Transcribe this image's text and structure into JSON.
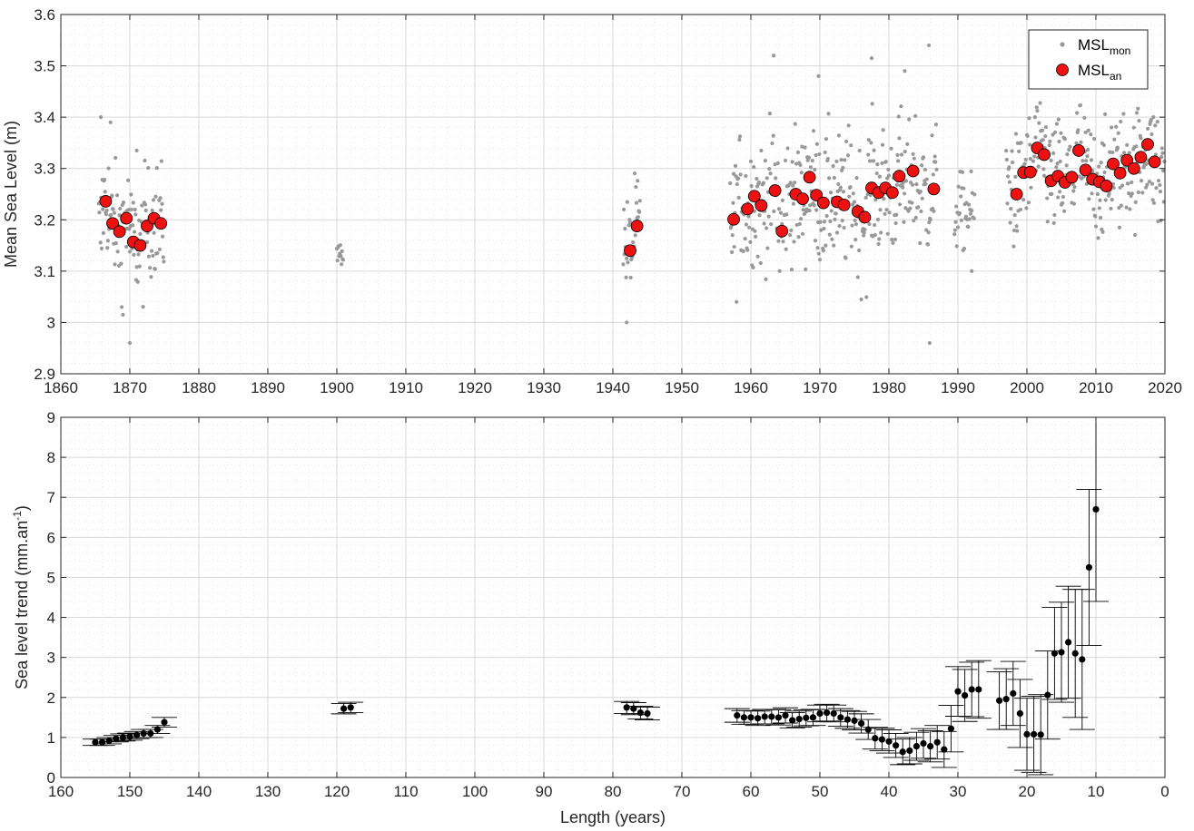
{
  "figure": {
    "background": "#ffffff",
    "axis_color": "#262626",
    "grid_major_color": "#d9d9d9",
    "grid_minor_color": "#e3e3e3"
  },
  "chart_data": [
    {
      "type": "scatter",
      "title": "",
      "xlabel": "",
      "ylabel": "Mean Sea Level (m)",
      "xlim": [
        1860,
        2020
      ],
      "ylim": [
        2.9,
        3.6
      ],
      "xticks": [
        1860,
        1870,
        1880,
        1890,
        1900,
        1910,
        1920,
        1930,
        1940,
        1950,
        1960,
        1970,
        1980,
        1990,
        2000,
        2010,
        2020
      ],
      "yticks": [
        2.9,
        3,
        3.1,
        3.2,
        3.3,
        3.4,
        3.5,
        3.6
      ],
      "ytick_labels": [
        "2.9",
        "3",
        "3.1",
        "3.2",
        "3.3",
        "3.4",
        "3.5",
        "3.6"
      ],
      "grid": true,
      "minor_grid": true,
      "legend": {
        "position": "top-right",
        "entries": [
          {
            "base": "MSL",
            "sub": "mon",
            "marker": "small-dot",
            "color": "#999999"
          },
          {
            "base": "MSL",
            "sub": "an",
            "marker": "circle",
            "color": "#ee1111"
          }
        ]
      },
      "monthly_color": "#999999",
      "annual_color": "#ee1111",
      "monthly_periods": [
        {
          "start": 1865.5,
          "end": 1875.0,
          "range": [
            3.0,
            3.35
          ]
        },
        {
          "start": 1900.0,
          "end": 1901.0,
          "range": [
            3.1,
            3.17
          ]
        },
        {
          "start": 1941.5,
          "end": 1944.0,
          "range": [
            3.0,
            3.31
          ]
        },
        {
          "start": 1957.0,
          "end": 1987.0,
          "range": [
            3.05,
            3.45
          ]
        },
        {
          "start": 1989.5,
          "end": 1992.5,
          "range": [
            3.1,
            3.33
          ]
        },
        {
          "start": 1997.0,
          "end": 2020.0,
          "range": [
            3.1,
            3.45
          ]
        }
      ],
      "monthly_extremes": [
        {
          "x": 1865.8,
          "y": 3.4
        },
        {
          "x": 1867.2,
          "y": 3.39
        },
        {
          "x": 1869.0,
          "y": 3.015
        },
        {
          "x": 1870.0,
          "y": 2.96
        },
        {
          "x": 1871.0,
          "y": 3.335
        },
        {
          "x": 1942.0,
          "y": 3.0
        },
        {
          "x": 1963.3,
          "y": 3.52
        },
        {
          "x": 1969.8,
          "y": 3.48
        },
        {
          "x": 1977.5,
          "y": 3.515
        },
        {
          "x": 1985.8,
          "y": 3.54
        },
        {
          "x": 1985.9,
          "y": 2.96
        },
        {
          "x": 1992.0,
          "y": 3.1
        },
        {
          "x": 1982.3,
          "y": 3.49
        },
        {
          "x": 2017.0,
          "y": 3.48
        }
      ],
      "annual": [
        {
          "x": 1866,
          "y": 3.236
        },
        {
          "x": 1867,
          "y": 3.193
        },
        {
          "x": 1868,
          "y": 3.177
        },
        {
          "x": 1869,
          "y": 3.203
        },
        {
          "x": 1870,
          "y": 3.157
        },
        {
          "x": 1871,
          "y": 3.15
        },
        {
          "x": 1872,
          "y": 3.188
        },
        {
          "x": 1873,
          "y": 3.203
        },
        {
          "x": 1874,
          "y": 3.193
        },
        {
          "x": 1942,
          "y": 3.14
        },
        {
          "x": 1943,
          "y": 3.188
        },
        {
          "x": 1957,
          "y": 3.201
        },
        {
          "x": 1959,
          "y": 3.221
        },
        {
          "x": 1960,
          "y": 3.246
        },
        {
          "x": 1961,
          "y": 3.228
        },
        {
          "x": 1963,
          "y": 3.257
        },
        {
          "x": 1964,
          "y": 3.178
        },
        {
          "x": 1966,
          "y": 3.25
        },
        {
          "x": 1967,
          "y": 3.241
        },
        {
          "x": 1968,
          "y": 3.283
        },
        {
          "x": 1969,
          "y": 3.248
        },
        {
          "x": 1970,
          "y": 3.233
        },
        {
          "x": 1972,
          "y": 3.235
        },
        {
          "x": 1973,
          "y": 3.229
        },
        {
          "x": 1975,
          "y": 3.216
        },
        {
          "x": 1976,
          "y": 3.205
        },
        {
          "x": 1977,
          "y": 3.262
        },
        {
          "x": 1978,
          "y": 3.253
        },
        {
          "x": 1979,
          "y": 3.262
        },
        {
          "x": 1980,
          "y": 3.253
        },
        {
          "x": 1981,
          "y": 3.285
        },
        {
          "x": 1983,
          "y": 3.295
        },
        {
          "x": 1986,
          "y": 3.26
        },
        {
          "x": 1998,
          "y": 3.25
        },
        {
          "x": 1999,
          "y": 3.292
        },
        {
          "x": 2000,
          "y": 3.293
        },
        {
          "x": 2001,
          "y": 3.34
        },
        {
          "x": 2002,
          "y": 3.327
        },
        {
          "x": 2003,
          "y": 3.276
        },
        {
          "x": 2004,
          "y": 3.285
        },
        {
          "x": 2005,
          "y": 3.273
        },
        {
          "x": 2006,
          "y": 3.283
        },
        {
          "x": 2007,
          "y": 3.335
        },
        {
          "x": 2008,
          "y": 3.297
        },
        {
          "x": 2009,
          "y": 3.279
        },
        {
          "x": 2010,
          "y": 3.274
        },
        {
          "x": 2011,
          "y": 3.266
        },
        {
          "x": 2012,
          "y": 3.309
        },
        {
          "x": 2013,
          "y": 3.291
        },
        {
          "x": 2014,
          "y": 3.316
        },
        {
          "x": 2015,
          "y": 3.3
        },
        {
          "x": 2016,
          "y": 3.322
        },
        {
          "x": 2017,
          "y": 3.347
        },
        {
          "x": 2018,
          "y": 3.313
        }
      ]
    },
    {
      "type": "scatter",
      "subtype": "errorbar",
      "title": "",
      "xlabel": "Length (years)",
      "ylabel_base": "Sea level trend (mm.an",
      "ylabel_sup": "-1",
      "ylabel_end": ")",
      "xlim": [
        160,
        0
      ],
      "x_reversed": true,
      "ylim": [
        0,
        9
      ],
      "xticks": [
        160,
        150,
        140,
        130,
        120,
        110,
        100,
        90,
        80,
        70,
        60,
        50,
        40,
        30,
        20,
        10,
        0
      ],
      "yticks": [
        0,
        1,
        2,
        3,
        4,
        5,
        6,
        7,
        8,
        9
      ],
      "grid": true,
      "minor_grid": true,
      "marker_color": "#000000",
      "points": [
        {
          "x": 155,
          "y": 0.88,
          "err": 0.08
        },
        {
          "x": 154,
          "y": 0.88,
          "err": 0.08
        },
        {
          "x": 153,
          "y": 0.92,
          "err": 0.08
        },
        {
          "x": 152,
          "y": 0.97,
          "err": 0.08
        },
        {
          "x": 151,
          "y": 1.0,
          "err": 0.09
        },
        {
          "x": 150,
          "y": 1.02,
          "err": 0.09
        },
        {
          "x": 149,
          "y": 1.06,
          "err": 0.09
        },
        {
          "x": 148,
          "y": 1.1,
          "err": 0.1
        },
        {
          "x": 147,
          "y": 1.1,
          "err": 0.1
        },
        {
          "x": 146,
          "y": 1.2,
          "err": 0.1
        },
        {
          "x": 145,
          "y": 1.38,
          "err": 0.12
        },
        {
          "x": 119,
          "y": 1.72,
          "err": 0.13
        },
        {
          "x": 118,
          "y": 1.75,
          "err": 0.13
        },
        {
          "x": 78,
          "y": 1.75,
          "err": 0.15
        },
        {
          "x": 77,
          "y": 1.72,
          "err": 0.15
        },
        {
          "x": 76,
          "y": 1.62,
          "err": 0.16
        },
        {
          "x": 75,
          "y": 1.6,
          "err": 0.16
        },
        {
          "x": 62,
          "y": 1.55,
          "err": 0.17
        },
        {
          "x": 61,
          "y": 1.5,
          "err": 0.17
        },
        {
          "x": 60,
          "y": 1.5,
          "err": 0.17
        },
        {
          "x": 59,
          "y": 1.48,
          "err": 0.18
        },
        {
          "x": 58,
          "y": 1.52,
          "err": 0.18
        },
        {
          "x": 57,
          "y": 1.52,
          "err": 0.18
        },
        {
          "x": 56,
          "y": 1.5,
          "err": 0.19
        },
        {
          "x": 55,
          "y": 1.55,
          "err": 0.19
        },
        {
          "x": 54,
          "y": 1.43,
          "err": 0.19
        },
        {
          "x": 53,
          "y": 1.46,
          "err": 0.2
        },
        {
          "x": 52,
          "y": 1.49,
          "err": 0.2
        },
        {
          "x": 51,
          "y": 1.5,
          "err": 0.2
        },
        {
          "x": 50,
          "y": 1.6,
          "err": 0.21
        },
        {
          "x": 49,
          "y": 1.62,
          "err": 0.21
        },
        {
          "x": 48,
          "y": 1.6,
          "err": 0.21
        },
        {
          "x": 47,
          "y": 1.5,
          "err": 0.22
        },
        {
          "x": 46,
          "y": 1.45,
          "err": 0.22
        },
        {
          "x": 45,
          "y": 1.42,
          "err": 0.23
        },
        {
          "x": 44,
          "y": 1.35,
          "err": 0.24
        },
        {
          "x": 43,
          "y": 1.2,
          "err": 0.25
        },
        {
          "x": 42,
          "y": 0.98,
          "err": 0.27
        },
        {
          "x": 41,
          "y": 0.95,
          "err": 0.28
        },
        {
          "x": 40,
          "y": 0.9,
          "err": 0.29
        },
        {
          "x": 39,
          "y": 0.8,
          "err": 0.3
        },
        {
          "x": 38,
          "y": 0.64,
          "err": 0.32
        },
        {
          "x": 37,
          "y": 0.67,
          "err": 0.33
        },
        {
          "x": 36,
          "y": 0.78,
          "err": 0.35
        },
        {
          "x": 35,
          "y": 0.85,
          "err": 0.37
        },
        {
          "x": 34,
          "y": 0.78,
          "err": 0.39
        },
        {
          "x": 33,
          "y": 0.88,
          "err": 0.42
        },
        {
          "x": 32,
          "y": 0.7,
          "err": 0.45
        },
        {
          "x": 31,
          "y": 1.22,
          "err": 0.58
        },
        {
          "x": 30,
          "y": 2.15,
          "err": 0.62
        },
        {
          "x": 29,
          "y": 2.05,
          "err": 0.65
        },
        {
          "x": 28,
          "y": 2.2,
          "err": 0.68
        },
        {
          "x": 27,
          "y": 2.2,
          "err": 0.72
        },
        {
          "x": 24,
          "y": 1.92,
          "err": 0.72
        },
        {
          "x": 23,
          "y": 1.96,
          "err": 0.76
        },
        {
          "x": 22,
          "y": 2.1,
          "err": 0.8
        },
        {
          "x": 21,
          "y": 1.6,
          "err": 0.85
        },
        {
          "x": 20,
          "y": 1.08,
          "err": 0.9
        },
        {
          "x": 19,
          "y": 1.08,
          "err": 0.95
        },
        {
          "x": 18,
          "y": 1.07,
          "err": 1.0
        },
        {
          "x": 17,
          "y": 2.06,
          "err": 1.1
        },
        {
          "x": 16,
          "y": 3.1,
          "err": 1.15
        },
        {
          "x": 15,
          "y": 3.13,
          "err": 1.25
        },
        {
          "x": 14,
          "y": 3.38,
          "err": 1.4
        },
        {
          "x": 13,
          "y": 3.1,
          "err": 1.6
        },
        {
          "x": 12,
          "y": 2.95,
          "err": 1.75
        },
        {
          "x": 11,
          "y": 5.25,
          "err": 1.95
        },
        {
          "x": 10,
          "y": 6.7,
          "err": 2.3
        }
      ]
    }
  ]
}
